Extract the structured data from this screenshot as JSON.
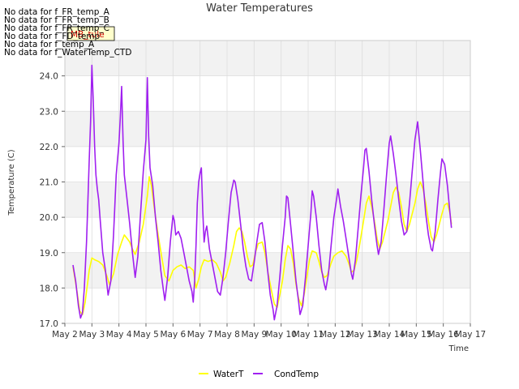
{
  "no_data_messages": [
    "No data for f_FR_temp_A",
    "No data for f_FR_temp_B",
    "No data for f_FR_temp_C",
    "No data for f_FD_temp",
    "No data for f_temp_A",
    "No data for f_WaterTemp_CTD"
  ],
  "tooltip": {
    "text": "MB_tule",
    "bg_color": "#ffffcc"
  },
  "chart_data": {
    "type": "line",
    "title": "Water Temperatures",
    "xlabel": "Time",
    "ylabel": "Temperature (C)",
    "ylim": [
      17.0,
      25.0
    ],
    "xlim": [
      2,
      17
    ],
    "x_unit": "day of May",
    "grid": true,
    "background_bands": true,
    "legend_position": "bottom-center",
    "x_ticks": [
      2,
      3,
      4,
      5,
      6,
      7,
      8,
      9,
      10,
      11,
      12,
      13,
      14,
      15,
      16,
      17
    ],
    "x_tick_labels": [
      "May 2",
      "May 3",
      "May 4",
      "May 5",
      "May 6",
      "May 7",
      "May 8",
      "May 9",
      "May 10",
      "May 11",
      "May 12",
      "May 13",
      "May 14",
      "May 15",
      "May 16",
      "May 17"
    ],
    "y_ticks": [
      17.0,
      18.0,
      19.0,
      20.0,
      21.0,
      22.0,
      23.0,
      24.0
    ],
    "y_tick_labels": [
      "17.0",
      "18.0",
      "19.0",
      "20.0",
      "21.0",
      "22.0",
      "23.0",
      "24.0"
    ],
    "series": [
      {
        "name": "WaterT",
        "color": "#ffff00",
        "points": [
          [
            2.3,
            18.6
          ],
          [
            2.45,
            17.9
          ],
          [
            2.55,
            17.35
          ],
          [
            2.65,
            17.25
          ],
          [
            2.75,
            17.6
          ],
          [
            2.9,
            18.5
          ],
          [
            3.0,
            18.85
          ],
          [
            3.1,
            18.8
          ],
          [
            3.25,
            18.75
          ],
          [
            3.4,
            18.65
          ],
          [
            3.55,
            18.35
          ],
          [
            3.65,
            18.1
          ],
          [
            3.8,
            18.4
          ],
          [
            3.95,
            18.95
          ],
          [
            4.1,
            19.3
          ],
          [
            4.2,
            19.5
          ],
          [
            4.3,
            19.4
          ],
          [
            4.4,
            19.3
          ],
          [
            4.5,
            19.1
          ],
          [
            4.6,
            18.95
          ],
          [
            4.75,
            19.3
          ],
          [
            4.9,
            19.8
          ],
          [
            5.05,
            20.6
          ],
          [
            5.12,
            21.15
          ],
          [
            5.2,
            20.9
          ],
          [
            5.3,
            20.3
          ],
          [
            5.45,
            19.5
          ],
          [
            5.6,
            18.8
          ],
          [
            5.7,
            18.35
          ],
          [
            5.85,
            18.2
          ],
          [
            6.0,
            18.5
          ],
          [
            6.15,
            18.6
          ],
          [
            6.3,
            18.65
          ],
          [
            6.45,
            18.55
          ],
          [
            6.6,
            18.6
          ],
          [
            6.75,
            18.5
          ],
          [
            6.85,
            18.0
          ],
          [
            6.95,
            18.25
          ],
          [
            7.05,
            18.6
          ],
          [
            7.15,
            18.8
          ],
          [
            7.3,
            18.75
          ],
          [
            7.45,
            18.8
          ],
          [
            7.6,
            18.7
          ],
          [
            7.75,
            18.45
          ],
          [
            7.85,
            18.2
          ],
          [
            7.95,
            18.3
          ],
          [
            8.1,
            18.7
          ],
          [
            8.25,
            19.2
          ],
          [
            8.35,
            19.6
          ],
          [
            8.45,
            19.7
          ],
          [
            8.55,
            19.6
          ],
          [
            8.65,
            19.3
          ],
          [
            8.75,
            18.9
          ],
          [
            8.85,
            18.6
          ],
          [
            8.95,
            18.65
          ],
          [
            9.05,
            19.0
          ],
          [
            9.15,
            19.25
          ],
          [
            9.3,
            19.3
          ],
          [
            9.4,
            19.0
          ],
          [
            9.5,
            18.5
          ],
          [
            9.65,
            17.9
          ],
          [
            9.75,
            17.55
          ],
          [
            9.85,
            17.45
          ],
          [
            9.95,
            17.8
          ],
          [
            10.05,
            18.2
          ],
          [
            10.15,
            18.8
          ],
          [
            10.25,
            19.2
          ],
          [
            10.35,
            19.1
          ],
          [
            10.45,
            18.7
          ],
          [
            10.55,
            18.1
          ],
          [
            10.65,
            17.7
          ],
          [
            10.75,
            17.5
          ],
          [
            10.85,
            17.8
          ],
          [
            10.95,
            18.3
          ],
          [
            11.05,
            18.8
          ],
          [
            11.15,
            19.05
          ],
          [
            11.3,
            19.0
          ],
          [
            11.4,
            18.75
          ],
          [
            11.5,
            18.45
          ],
          [
            11.6,
            18.3
          ],
          [
            11.7,
            18.35
          ],
          [
            11.85,
            18.7
          ],
          [
            11.95,
            18.9
          ],
          [
            12.1,
            19.0
          ],
          [
            12.25,
            19.05
          ],
          [
            12.4,
            18.9
          ],
          [
            12.5,
            18.7
          ],
          [
            12.6,
            18.45
          ],
          [
            12.7,
            18.5
          ],
          [
            12.8,
            18.8
          ],
          [
            12.9,
            19.2
          ],
          [
            13.05,
            19.9
          ],
          [
            13.15,
            20.4
          ],
          [
            13.25,
            20.6
          ],
          [
            13.35,
            20.3
          ],
          [
            13.45,
            19.9
          ],
          [
            13.55,
            19.4
          ],
          [
            13.65,
            19.1
          ],
          [
            13.75,
            19.3
          ],
          [
            13.85,
            19.6
          ],
          [
            13.95,
            19.9
          ],
          [
            14.05,
            20.3
          ],
          [
            14.15,
            20.7
          ],
          [
            14.25,
            20.85
          ],
          [
            14.35,
            20.7
          ],
          [
            14.45,
            20.3
          ],
          [
            14.55,
            19.8
          ],
          [
            14.65,
            19.6
          ],
          [
            14.75,
            19.8
          ],
          [
            14.85,
            20.1
          ],
          [
            14.95,
            20.4
          ],
          [
            15.05,
            20.8
          ],
          [
            15.15,
            21.0
          ],
          [
            15.25,
            20.8
          ],
          [
            15.35,
            20.4
          ],
          [
            15.45,
            19.9
          ],
          [
            15.55,
            19.45
          ],
          [
            15.65,
            19.3
          ],
          [
            15.75,
            19.5
          ],
          [
            15.85,
            19.8
          ],
          [
            15.95,
            20.1
          ],
          [
            16.05,
            20.35
          ],
          [
            16.15,
            20.4
          ],
          [
            16.25,
            20.1
          ],
          [
            16.3,
            19.8
          ]
        ]
      },
      {
        "name": "CondTemp",
        "color": "#a020f0",
        "points": [
          [
            2.3,
            18.65
          ],
          [
            2.4,
            18.2
          ],
          [
            2.5,
            17.5
          ],
          [
            2.58,
            17.15
          ],
          [
            2.65,
            17.3
          ],
          [
            2.72,
            18.0
          ],
          [
            2.8,
            19.3
          ],
          [
            2.85,
            20.4
          ],
          [
            2.9,
            21.6
          ],
          [
            2.95,
            22.7
          ],
          [
            3.0,
            24.3
          ],
          [
            3.05,
            23.3
          ],
          [
            3.1,
            22.0
          ],
          [
            3.15,
            21.2
          ],
          [
            3.2,
            20.8
          ],
          [
            3.25,
            20.5
          ],
          [
            3.3,
            20.0
          ],
          [
            3.4,
            19.0
          ],
          [
            3.5,
            18.5
          ],
          [
            3.6,
            17.8
          ],
          [
            3.7,
            18.2
          ],
          [
            3.8,
            19.5
          ],
          [
            3.9,
            21.2
          ],
          [
            4.0,
            22.1
          ],
          [
            4.05,
            22.8
          ],
          [
            4.1,
            23.7
          ],
          [
            4.15,
            22.2
          ],
          [
            4.2,
            21.2
          ],
          [
            4.3,
            20.5
          ],
          [
            4.4,
            19.8
          ],
          [
            4.5,
            19.0
          ],
          [
            4.6,
            18.3
          ],
          [
            4.7,
            18.9
          ],
          [
            4.8,
            20.1
          ],
          [
            4.9,
            21.3
          ],
          [
            5.0,
            22.2
          ],
          [
            5.05,
            23.95
          ],
          [
            5.1,
            22.3
          ],
          [
            5.15,
            21.4
          ],
          [
            5.25,
            20.9
          ],
          [
            5.35,
            20.0
          ],
          [
            5.45,
            19.3
          ],
          [
            5.55,
            18.5
          ],
          [
            5.65,
            17.9
          ],
          [
            5.7,
            17.65
          ],
          [
            5.8,
            18.3
          ],
          [
            5.9,
            19.3
          ],
          [
            6.0,
            20.05
          ],
          [
            6.05,
            19.9
          ],
          [
            6.1,
            19.5
          ],
          [
            6.2,
            19.6
          ],
          [
            6.3,
            19.4
          ],
          [
            6.4,
            19.0
          ],
          [
            6.5,
            18.6
          ],
          [
            6.6,
            18.2
          ],
          [
            6.7,
            17.9
          ],
          [
            6.75,
            17.6
          ],
          [
            6.8,
            18.2
          ],
          [
            6.85,
            19.2
          ],
          [
            6.9,
            20.4
          ],
          [
            6.95,
            21.0
          ],
          [
            7.0,
            21.25
          ],
          [
            7.05,
            21.4
          ],
          [
            7.1,
            20.2
          ],
          [
            7.15,
            19.3
          ],
          [
            7.2,
            19.6
          ],
          [
            7.25,
            19.75
          ],
          [
            7.35,
            19.1
          ],
          [
            7.45,
            18.7
          ],
          [
            7.55,
            18.3
          ],
          [
            7.65,
            17.9
          ],
          [
            7.75,
            17.8
          ],
          [
            7.85,
            18.3
          ],
          [
            7.95,
            19.0
          ],
          [
            8.05,
            19.9
          ],
          [
            8.15,
            20.7
          ],
          [
            8.25,
            21.05
          ],
          [
            8.3,
            21.0
          ],
          [
            8.4,
            20.5
          ],
          [
            8.5,
            19.8
          ],
          [
            8.6,
            19.1
          ],
          [
            8.7,
            18.6
          ],
          [
            8.8,
            18.25
          ],
          [
            8.9,
            18.2
          ],
          [
            9.0,
            18.7
          ],
          [
            9.1,
            19.3
          ],
          [
            9.2,
            19.8
          ],
          [
            9.3,
            19.85
          ],
          [
            9.4,
            19.3
          ],
          [
            9.5,
            18.5
          ],
          [
            9.6,
            17.8
          ],
          [
            9.7,
            17.4
          ],
          [
            9.75,
            17.1
          ],
          [
            9.85,
            17.5
          ],
          [
            9.95,
            18.3
          ],
          [
            10.05,
            19.2
          ],
          [
            10.15,
            20.0
          ],
          [
            10.2,
            20.6
          ],
          [
            10.25,
            20.55
          ],
          [
            10.35,
            19.8
          ],
          [
            10.45,
            19.0
          ],
          [
            10.55,
            18.2
          ],
          [
            10.65,
            17.6
          ],
          [
            10.7,
            17.25
          ],
          [
            10.8,
            17.5
          ],
          [
            10.9,
            18.3
          ],
          [
            11.0,
            19.2
          ],
          [
            11.1,
            20.1
          ],
          [
            11.15,
            20.75
          ],
          [
            11.2,
            20.6
          ],
          [
            11.3,
            20.0
          ],
          [
            11.4,
            19.2
          ],
          [
            11.5,
            18.5
          ],
          [
            11.6,
            18.1
          ],
          [
            11.65,
            17.95
          ],
          [
            11.75,
            18.4
          ],
          [
            11.85,
            19.2
          ],
          [
            11.95,
            20.0
          ],
          [
            12.05,
            20.5
          ],
          [
            12.1,
            20.8
          ],
          [
            12.2,
            20.3
          ],
          [
            12.3,
            19.9
          ],
          [
            12.4,
            19.4
          ],
          [
            12.5,
            18.9
          ],
          [
            12.6,
            18.4
          ],
          [
            12.65,
            18.25
          ],
          [
            12.75,
            18.8
          ],
          [
            12.85,
            19.7
          ],
          [
            12.95,
            20.6
          ],
          [
            13.05,
            21.4
          ],
          [
            13.1,
            21.9
          ],
          [
            13.15,
            21.95
          ],
          [
            13.25,
            21.3
          ],
          [
            13.35,
            20.5
          ],
          [
            13.45,
            19.8
          ],
          [
            13.55,
            19.2
          ],
          [
            13.6,
            18.95
          ],
          [
            13.7,
            19.3
          ],
          [
            13.8,
            20.2
          ],
          [
            13.9,
            21.2
          ],
          [
            14.0,
            22.1
          ],
          [
            14.05,
            22.3
          ],
          [
            14.15,
            21.8
          ],
          [
            14.25,
            21.2
          ],
          [
            14.35,
            20.5
          ],
          [
            14.45,
            19.9
          ],
          [
            14.55,
            19.5
          ],
          [
            14.65,
            19.6
          ],
          [
            14.75,
            20.4
          ],
          [
            14.85,
            21.3
          ],
          [
            14.95,
            22.2
          ],
          [
            15.05,
            22.7
          ],
          [
            15.15,
            21.9
          ],
          [
            15.25,
            21.0
          ],
          [
            15.35,
            20.1
          ],
          [
            15.45,
            19.5
          ],
          [
            15.55,
            19.1
          ],
          [
            15.6,
            19.05
          ],
          [
            15.7,
            19.6
          ],
          [
            15.8,
            20.5
          ],
          [
            15.9,
            21.3
          ],
          [
            15.95,
            21.65
          ],
          [
            16.05,
            21.5
          ],
          [
            16.15,
            20.9
          ],
          [
            16.25,
            20.1
          ],
          [
            16.3,
            19.7
          ]
        ]
      }
    ]
  }
}
